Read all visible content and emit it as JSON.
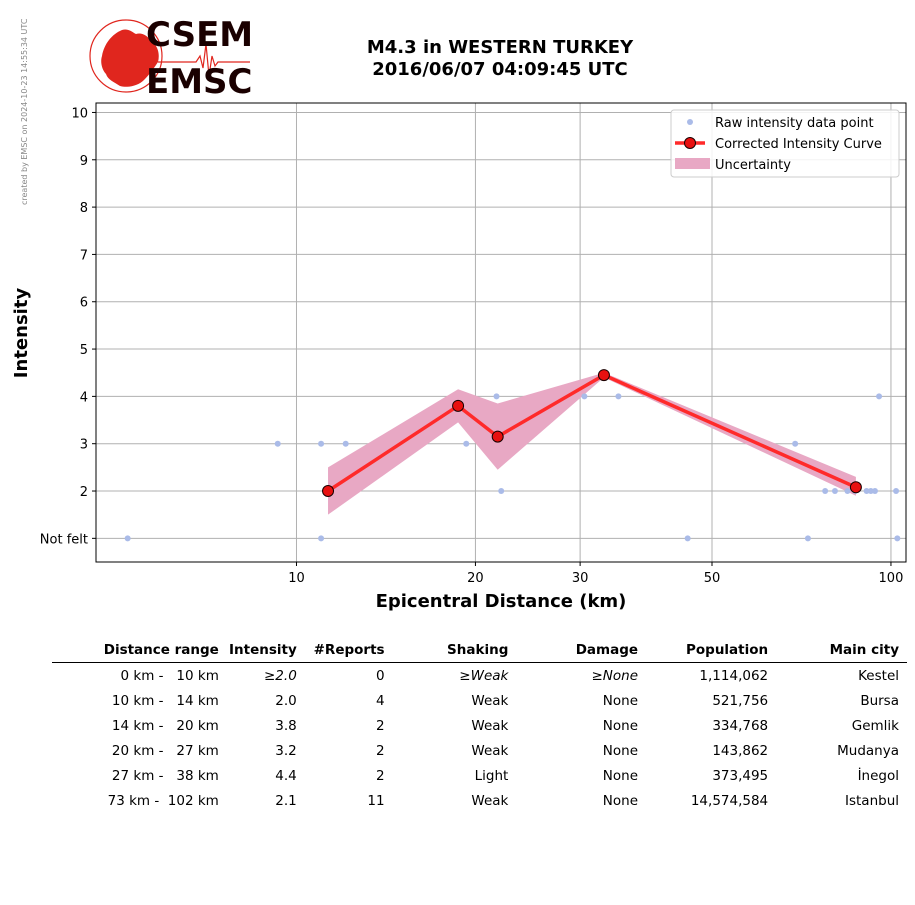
{
  "header": {
    "credit": "created by EMSC on 2024-10-23 14:55:34 UTC",
    "logo_top": "CSEM",
    "logo_bottom": "EMSC",
    "title_line1": "M4.3 in WESTERN TURKEY",
    "title_line2": "2016/06/07 04:09:45 UTC"
  },
  "colors": {
    "raw_points": "#aabbe8",
    "curve": "#ff2a2a",
    "curve_marker": "#e81010",
    "uncertainty": "#e8a8c4",
    "grid": "#b0b0b0",
    "logo_red": "#e0261e",
    "logo_dark": "#1a0000"
  },
  "chart_data": {
    "type": "scatter",
    "xlabel": "Epicentral Distance (km)",
    "ylabel": "Intensity",
    "x_scale": "log",
    "xlim": [
      4.6,
      106
    ],
    "ylim": [
      0.5,
      10.2
    ],
    "x_ticks": [
      {
        "value": 10,
        "label": "10"
      },
      {
        "value": 20,
        "label": "20"
      },
      {
        "value": 30,
        "label": "30"
      },
      {
        "value": 50,
        "label": "50"
      },
      {
        "value": 100,
        "label": "100"
      }
    ],
    "y_ticks": [
      {
        "value": 1,
        "label": "Not felt"
      },
      {
        "value": 2,
        "label": "2"
      },
      {
        "value": 3,
        "label": "3"
      },
      {
        "value": 4,
        "label": "4"
      },
      {
        "value": 5,
        "label": "5"
      },
      {
        "value": 6,
        "label": "6"
      },
      {
        "value": 7,
        "label": "7"
      },
      {
        "value": 8,
        "label": "8"
      },
      {
        "value": 9,
        "label": "9"
      },
      {
        "value": 10,
        "label": "10"
      }
    ],
    "grid": true,
    "legend_position": "top-right",
    "legend": [
      {
        "key": "raw",
        "label": "Raw intensity data point"
      },
      {
        "key": "curve",
        "label": "Corrected Intensity Curve"
      },
      {
        "key": "band",
        "label": "Uncertainty"
      }
    ],
    "raw_points": [
      {
        "x": 5.2,
        "y": 1
      },
      {
        "x": 9.3,
        "y": 3
      },
      {
        "x": 11.0,
        "y": 3
      },
      {
        "x": 11.0,
        "y": 1
      },
      {
        "x": 12.1,
        "y": 3
      },
      {
        "x": 19.3,
        "y": 3
      },
      {
        "x": 21.7,
        "y": 4
      },
      {
        "x": 22.1,
        "y": 2
      },
      {
        "x": 30.5,
        "y": 4
      },
      {
        "x": 34.8,
        "y": 4
      },
      {
        "x": 45.5,
        "y": 1
      },
      {
        "x": 69.0,
        "y": 3
      },
      {
        "x": 72.5,
        "y": 1
      },
      {
        "x": 77.5,
        "y": 2
      },
      {
        "x": 80.5,
        "y": 2
      },
      {
        "x": 84.5,
        "y": 2
      },
      {
        "x": 87.0,
        "y": 2
      },
      {
        "x": 91.0,
        "y": 2
      },
      {
        "x": 92.5,
        "y": 2
      },
      {
        "x": 94.0,
        "y": 2
      },
      {
        "x": 95.5,
        "y": 4
      },
      {
        "x": 102.0,
        "y": 2
      },
      {
        "x": 102.5,
        "y": 1
      }
    ],
    "curve": [
      {
        "x": 11.3,
        "y": 2.0
      },
      {
        "x": 18.7,
        "y": 3.8
      },
      {
        "x": 21.8,
        "y": 3.15
      },
      {
        "x": 32.9,
        "y": 4.45
      },
      {
        "x": 87.3,
        "y": 2.08
      }
    ],
    "band_upper": [
      2.5,
      4.15,
      3.85,
      4.5,
      2.3
    ],
    "band_lower": [
      1.5,
      3.45,
      2.45,
      4.4,
      1.9
    ]
  },
  "table": {
    "headers": [
      "Distance range",
      "Intensity",
      "#Reports",
      "Shaking",
      "Damage",
      "Population",
      "Main city"
    ],
    "rows": [
      {
        "range": "0 km -   10 km",
        "intensity": "≥2.0",
        "reports": "0",
        "shaking": "≥Weak",
        "damage": "≥None",
        "population": "1,114,062",
        "city": "Kestel",
        "estimated": true
      },
      {
        "range": "10 km -   14 km",
        "intensity": "2.0",
        "reports": "4",
        "shaking": "Weak",
        "damage": "None",
        "population": "521,756",
        "city": "Bursa",
        "estimated": false
      },
      {
        "range": "14 km -   20 km",
        "intensity": "3.8",
        "reports": "2",
        "shaking": "Weak",
        "damage": "None",
        "population": "334,768",
        "city": "Gemlik",
        "estimated": false
      },
      {
        "range": "20 km -   27 km",
        "intensity": "3.2",
        "reports": "2",
        "shaking": "Weak",
        "damage": "None",
        "population": "143,862",
        "city": "Mudanya",
        "estimated": false
      },
      {
        "range": "27 km -   38 km",
        "intensity": "4.4",
        "reports": "2",
        "shaking": "Light",
        "damage": "None",
        "population": "373,495",
        "city": "İnegol",
        "estimated": false
      },
      {
        "range": "73 km -  102 km",
        "intensity": "2.1",
        "reports": "11",
        "shaking": "Weak",
        "damage": "None",
        "population": "14,574,584",
        "city": "Istanbul",
        "estimated": false
      }
    ]
  }
}
